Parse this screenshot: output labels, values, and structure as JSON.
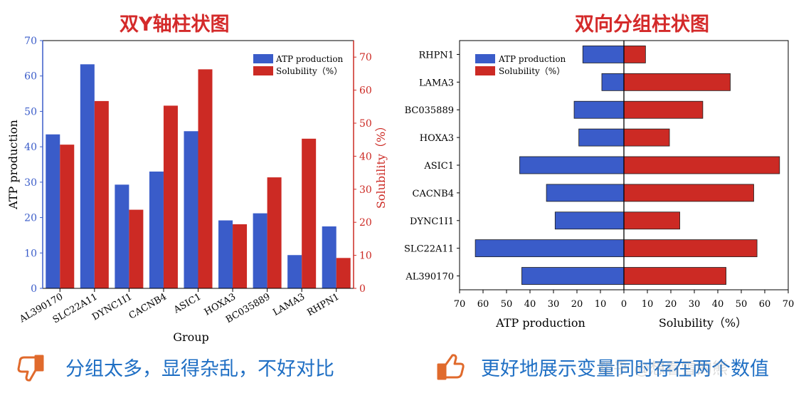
{
  "titles": {
    "left": "双Y轴柱状图",
    "right": "双向分组柱状图"
  },
  "captions": {
    "left": "分组太多，显得杂乱，不好对比",
    "right": "更好地展示变量同时存在两个数值"
  },
  "watermark": "知乎 @想看雪的熊",
  "icons": {
    "left": "thumbs-down-icon",
    "right": "thumbs-up-icon"
  },
  "colors": {
    "atp": "#3a5cc9",
    "sol": "#cc2a24",
    "title": "#d42a2a",
    "caption": "#1f6fc4",
    "icon": "#e06a2c"
  },
  "chart_data": [
    {
      "type": "bar",
      "title": "双Y轴柱状图",
      "categories": [
        "AL390170",
        "SLC22A11",
        "DYNC1I1",
        "CACNB4",
        "ASIC1",
        "HOXA3",
        "BC035889",
        "LAMA3",
        "RHPN1"
      ],
      "xlabel": "Group",
      "ylabel": "ATP production",
      "y2label": "Solubility（%）",
      "ylim": [
        0,
        70
      ],
      "y2lim": [
        0,
        75
      ],
      "yticks": [
        "0",
        "10",
        "20",
        "30",
        "40",
        "50",
        "60",
        "70"
      ],
      "y2ticks": [
        "0",
        "10",
        "20",
        "30",
        "40",
        "50",
        "60",
        "70"
      ],
      "legend_position": "top-right",
      "series": [
        {
          "name": "ATP production",
          "axis": "left",
          "values": [
            43.5,
            63.3,
            29.3,
            33,
            44.4,
            19.2,
            21.2,
            9.4,
            17.5
          ]
        },
        {
          "name": "Solubility（%）",
          "axis": "right",
          "values": [
            43.5,
            56.7,
            23.8,
            55.3,
            66.3,
            19.4,
            33.6,
            45.3,
            9.2
          ]
        }
      ]
    },
    {
      "type": "bar",
      "orientation": "horizontal-diverging",
      "title": "双向分组柱状图",
      "categories": [
        "AL390170",
        "SLC22A11",
        "DYNC1I1",
        "CACNB4",
        "ASIC1",
        "HOXA3",
        "BC035889",
        "LAMA3",
        "RHPN1"
      ],
      "xlabel_left": "ATP production",
      "xlabel_right": "Solubility（%）",
      "xlim": [
        -70,
        70
      ],
      "xticks": [
        "70",
        "60",
        "50",
        "40",
        "30",
        "20",
        "10",
        "0",
        "10",
        "20",
        "30",
        "40",
        "50",
        "60",
        "70"
      ],
      "legend_position": "top-left",
      "series": [
        {
          "name": "ATP production",
          "direction": "left",
          "values": [
            43.5,
            63.3,
            29.3,
            33,
            44.4,
            19.2,
            21.2,
            9.4,
            17.5
          ]
        },
        {
          "name": "Solubility（%）",
          "direction": "right",
          "values": [
            43.5,
            56.7,
            23.8,
            55.3,
            66.3,
            19.4,
            33.6,
            45.3,
            9.2
          ]
        }
      ]
    }
  ]
}
